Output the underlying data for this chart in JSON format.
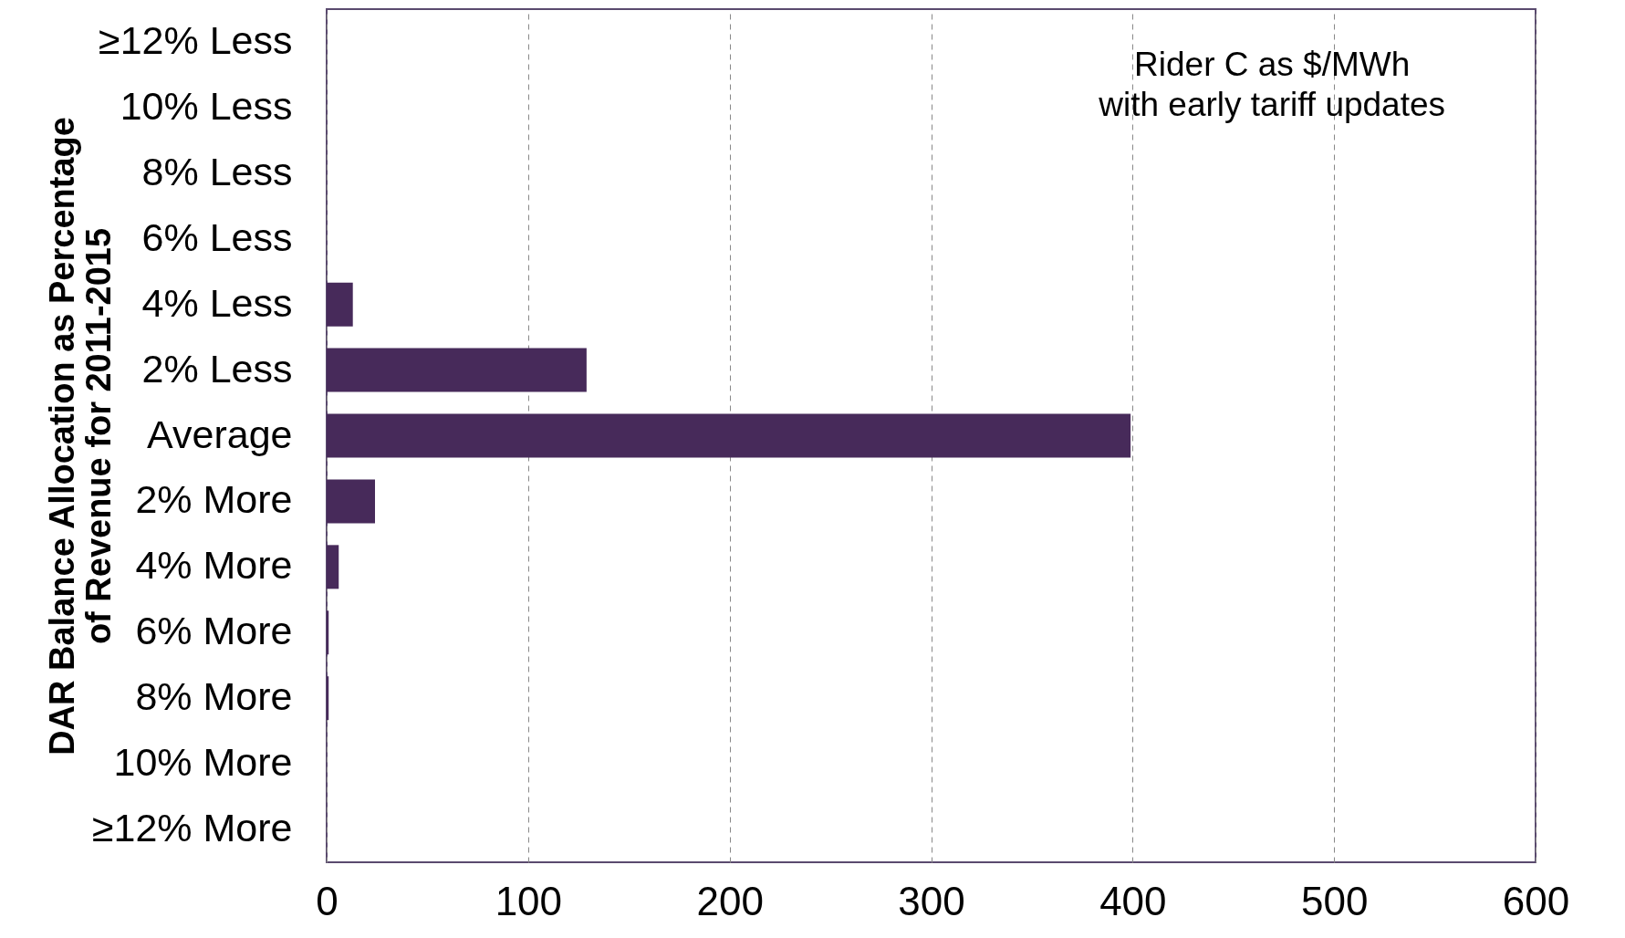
{
  "chart_data": {
    "type": "bar",
    "orientation": "horizontal",
    "ylabel": "DAR Balance Allocation as Percentage\nof Revenue for 2011-2015",
    "categories": [
      "≥12% Less",
      "10% Less",
      "8% Less",
      "6% Less",
      "4% Less",
      "2% Less",
      "Average",
      "2% More",
      "4% More",
      "6% More",
      "8% More",
      "10% More",
      "≥12% More"
    ],
    "values": [
      0,
      0,
      0,
      0,
      13,
      129,
      399,
      24,
      6,
      1,
      1,
      0,
      0
    ],
    "color": "#472a5a",
    "xlim": [
      0,
      600
    ],
    "xticks": [
      0,
      100,
      200,
      300,
      400,
      500,
      600
    ],
    "grid": "x",
    "line_style": "dashed",
    "annotations": [
      "Rider C as $/MWh\nwith early tariff updates"
    ]
  }
}
